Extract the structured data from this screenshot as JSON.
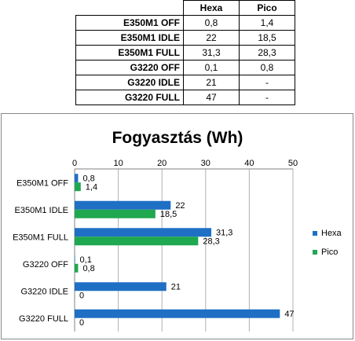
{
  "table": {
    "headers": [
      "Hexa",
      "Pico"
    ],
    "rows": [
      {
        "label": "E350M1 OFF",
        "hexa": "0,8",
        "pico": "1,4"
      },
      {
        "label": "E350M1 IDLE",
        "hexa": "22",
        "pico": "18,5"
      },
      {
        "label": "E350M1 FULL",
        "hexa": "31,3",
        "pico": "28,3"
      },
      {
        "label": "G3220 OFF",
        "hexa": "0,1",
        "pico": "0,8"
      },
      {
        "label": "G3220 IDLE",
        "hexa": "21",
        "pico": "-"
      },
      {
        "label": "G3220 FULL",
        "hexa": "47",
        "pico": "-"
      }
    ]
  },
  "chart_data": {
    "type": "bar",
    "orientation": "horizontal",
    "title": "Fogyasztás (Wh)",
    "categories": [
      "E350M1 OFF",
      "E350M1 IDLE",
      "E350M1 FULL",
      "G3220 OFF",
      "G3220 IDLE",
      "G3220 FULL"
    ],
    "series": [
      {
        "name": "Hexa",
        "color": "#1f6fc5",
        "values": [
          0.8,
          22,
          31.3,
          0.1,
          21,
          47
        ],
        "labels": [
          "0,8",
          "22",
          "31,3",
          "0,1",
          "21",
          "47"
        ]
      },
      {
        "name": "Pico",
        "color": "#1fa84f",
        "values": [
          1.4,
          18.5,
          28.3,
          0.8,
          0,
          0
        ],
        "labels": [
          "1,4",
          "18,5",
          "28,3",
          "0,8",
          "0",
          "0"
        ]
      }
    ],
    "xlim": [
      0,
      50
    ],
    "xticks": [
      "0",
      "10",
      "20",
      "30",
      "40",
      "50"
    ],
    "xtick_values": [
      0,
      10,
      20,
      30,
      40,
      50
    ],
    "grid": true,
    "axis_position": "top",
    "legend": "right"
  }
}
